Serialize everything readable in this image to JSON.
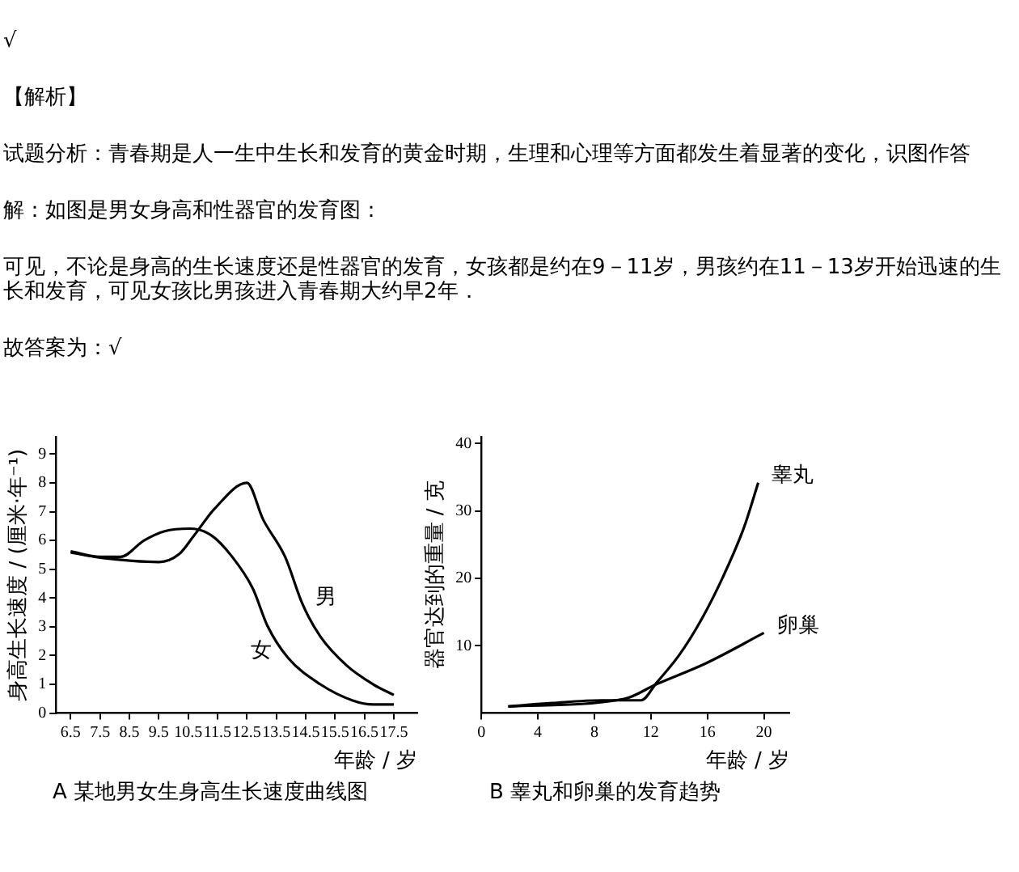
{
  "chart_data": [
    {
      "type": "other",
      "annotations": [
        "√",
        "【解析】",
        "试题分析：青春期是人一生中生长和发育的黄金时期，生理和心理等方面都发生着显著的变化，识图作答",
        "解：如图是男女身高和性器官的发育图：",
        "可见，不论是身高的生长速度还是性器官的发育，女孩都是约在9－11岁，男孩约在11－13岁开始迅速的生长和发育，可见女孩比男孩进入青春期大约早2年．",
        "故答案为：√"
      ]
    },
    {
      "type": "line",
      "title": "A 某地男女生身高生长速度曲线图",
      "xlabel": "年龄 / 岁",
      "ylabel": "身高生长速度 / (厘米·年⁻¹)",
      "xlim": [
        6.0,
        18.3
      ],
      "xticks": [
        6.5,
        7.5,
        8.5,
        9.5,
        10.5,
        11.5,
        12.5,
        13.5,
        14.5,
        15.5,
        16.5,
        17.5
      ],
      "ylim": [
        0,
        9.6
      ],
      "yticks": [
        0,
        1,
        2,
        3,
        4,
        5,
        6,
        7,
        8,
        9
      ],
      "grid": false,
      "series": [
        {
          "name": "女",
          "color": "#000000",
          "x": [
            6.5,
            7.5,
            8.2,
            9.0,
            9.7,
            10.56,
            11.3,
            12.0,
            12.7,
            13.2,
            13.9,
            15.0,
            16.1,
            16.8,
            17.5
          ],
          "values": [
            5.62,
            5.43,
            5.43,
            6.0,
            6.32,
            6.41,
            6.17,
            5.43,
            4.33,
            3.03,
            1.92,
            1.0,
            0.44,
            0.3,
            0.3
          ]
        },
        {
          "name": "男",
          "color": "#000000",
          "x": [
            6.5,
            7.5,
            8.6,
            9.5,
            10.2,
            10.7,
            11.4,
            12.5,
            13.05,
            13.8,
            14.4,
            15.0,
            15.9,
            16.8,
            17.5
          ],
          "values": [
            5.58,
            5.4,
            5.29,
            5.25,
            5.53,
            6.17,
            7.1,
            8.0,
            6.73,
            5.43,
            3.77,
            2.66,
            1.65,
            1.0,
            0.63
          ]
        }
      ]
    },
    {
      "type": "line",
      "title": "B 睾丸和卵巢的发育趋势",
      "xlabel": "年龄 / 岁",
      "ylabel": "器官达到的重量 / 克",
      "xlim": [
        0,
        21.8
      ],
      "xticks": [
        0,
        4,
        8,
        12,
        16,
        20
      ],
      "ylim": [
        0,
        41
      ],
      "yticks": [
        10,
        20,
        30,
        40
      ],
      "grid": false,
      "series": [
        {
          "name": "睾丸",
          "color": "#000000",
          "x": [
            1.9,
            5.0,
            8.5,
            11.3,
            12.4,
            14.0,
            15.5,
            17.1,
            18.6,
            19.6
          ],
          "values": [
            1.0,
            1.5,
            1.9,
            1.9,
            4.5,
            8.6,
            13.6,
            20.2,
            27.6,
            34.2
          ]
        },
        {
          "name": "卵巢",
          "color": "#000000",
          "x": [
            1.9,
            10.1,
            12.4,
            15.9,
            20.0
          ],
          "values": [
            1.0,
            2.1,
            4.3,
            7.4,
            11.9
          ]
        }
      ]
    }
  ]
}
